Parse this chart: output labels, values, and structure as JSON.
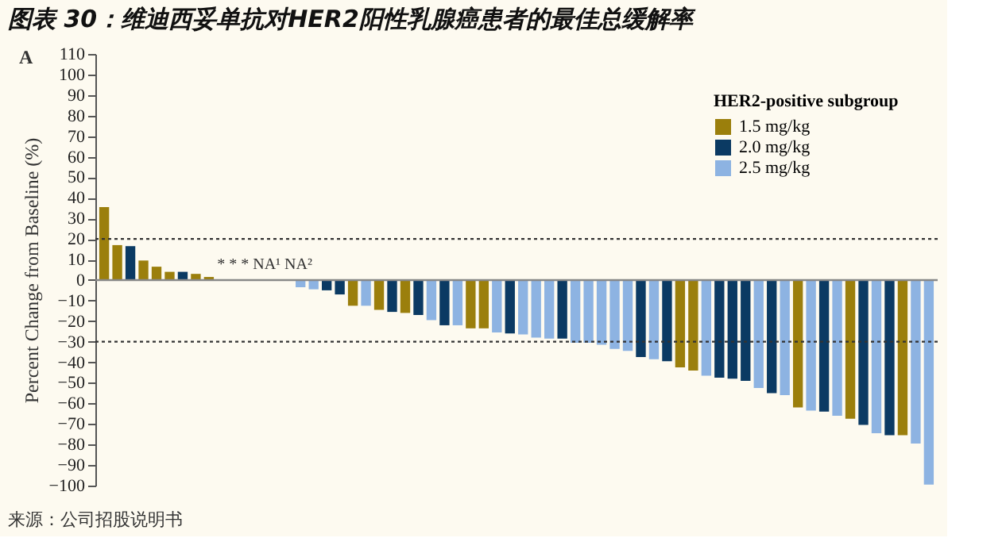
{
  "chart_data": {
    "type": "bar",
    "title": "图表 30：维迪西妥单抗对HER2阳性乳腺癌患者的最佳总缓解率",
    "ylabel": "Percent Change from Baseline (%)",
    "legend_title": "HER2-positive subgroup",
    "legend": "top right",
    "grid": false,
    "tick_labels": "y",
    "categories": [
      null,
      null,
      null,
      null,
      null,
      null,
      null,
      null,
      null,
      null,
      null,
      null,
      null,
      null,
      null,
      null,
      null,
      null,
      null,
      null,
      null,
      null,
      null,
      null,
      null,
      null,
      null,
      null,
      null,
      null,
      null,
      null,
      null,
      null,
      null,
      null,
      null,
      null,
      null,
      null,
      null,
      null,
      null,
      null,
      null,
      null,
      null,
      null,
      null,
      null,
      null,
      null,
      null,
      null,
      null,
      null,
      null,
      null,
      null,
      null,
      null,
      null,
      null,
      null
    ],
    "ylim": [
      -100,
      110
    ],
    "yticks": [
      -100,
      -90,
      -80,
      -70,
      -60,
      -50,
      -40,
      -30,
      -20,
      -10,
      0,
      10,
      20,
      30,
      40,
      50,
      60,
      70,
      80,
      90,
      100,
      110
    ],
    "series": [
      {
        "name": "1.5 mg/kg",
        "color": "#9b7f0c",
        "values": [
          35.5,
          17,
          null,
          9.5,
          6.5,
          4,
          null,
          3,
          1.5,
          null,
          null,
          null,
          null,
          null,
          null,
          null,
          null,
          null,
          null,
          -12.5,
          null,
          -14.5,
          null,
          -16,
          null,
          null,
          null,
          null,
          -23.5,
          -23.5,
          null,
          null,
          null,
          null,
          null,
          null,
          null,
          null,
          null,
          null,
          null,
          null,
          null,
          null,
          -42.5,
          -44,
          null,
          null,
          null,
          null,
          null,
          null,
          null,
          -62,
          null,
          null,
          null,
          -67.5,
          null,
          null,
          null,
          -75.5,
          null,
          null
        ]
      },
      {
        "name": "2.0 mg/kg",
        "color": "#0b3a63",
        "values": [
          null,
          null,
          16.5,
          null,
          null,
          null,
          4,
          null,
          null,
          null,
          null,
          null,
          null,
          null,
          null,
          null,
          null,
          -5,
          -7,
          null,
          null,
          null,
          -15.5,
          null,
          -17,
          null,
          -22,
          null,
          null,
          null,
          null,
          -26,
          null,
          null,
          null,
          -28.5,
          null,
          null,
          null,
          null,
          null,
          -37.5,
          null,
          -39.5,
          null,
          null,
          null,
          -47.5,
          -48,
          -49,
          null,
          -55,
          null,
          null,
          null,
          -64,
          null,
          null,
          -70.5,
          null,
          -75.5,
          null,
          null,
          null
        ]
      },
      {
        "name": "2.5 mg/kg",
        "color": "#8db3e2",
        "values": [
          null,
          null,
          null,
          null,
          null,
          null,
          null,
          null,
          null,
          null,
          null,
          null,
          null,
          null,
          null,
          -3.5,
          -4.5,
          null,
          null,
          null,
          -12.5,
          null,
          null,
          null,
          null,
          -19.5,
          null,
          -22,
          null,
          null,
          -25.5,
          null,
          -26.5,
          -28,
          -28.5,
          null,
          -30.5,
          -30.5,
          -31.5,
          -33.5,
          -34.5,
          null,
          -38.5,
          null,
          null,
          null,
          -46.5,
          null,
          null,
          null,
          -52.5,
          null,
          -56,
          null,
          -63.5,
          null,
          -66,
          null,
          null,
          -74.5,
          null,
          null,
          -79.5,
          -99.5
        ]
      }
    ],
    "ref_lines": [
      {
        "axis": "y",
        "value": 20,
        "line_style": "dotted",
        "color": "#333333"
      },
      {
        "axis": "y",
        "value": -30,
        "line_style": "dotted",
        "color": "#333333"
      },
      {
        "axis": "y",
        "value": 0,
        "line_style": "solid",
        "color": "#888888"
      }
    ],
    "annotations": [
      "A",
      "* * * NA¹ NA²",
      "来源：公司招股说明书"
    ]
  }
}
